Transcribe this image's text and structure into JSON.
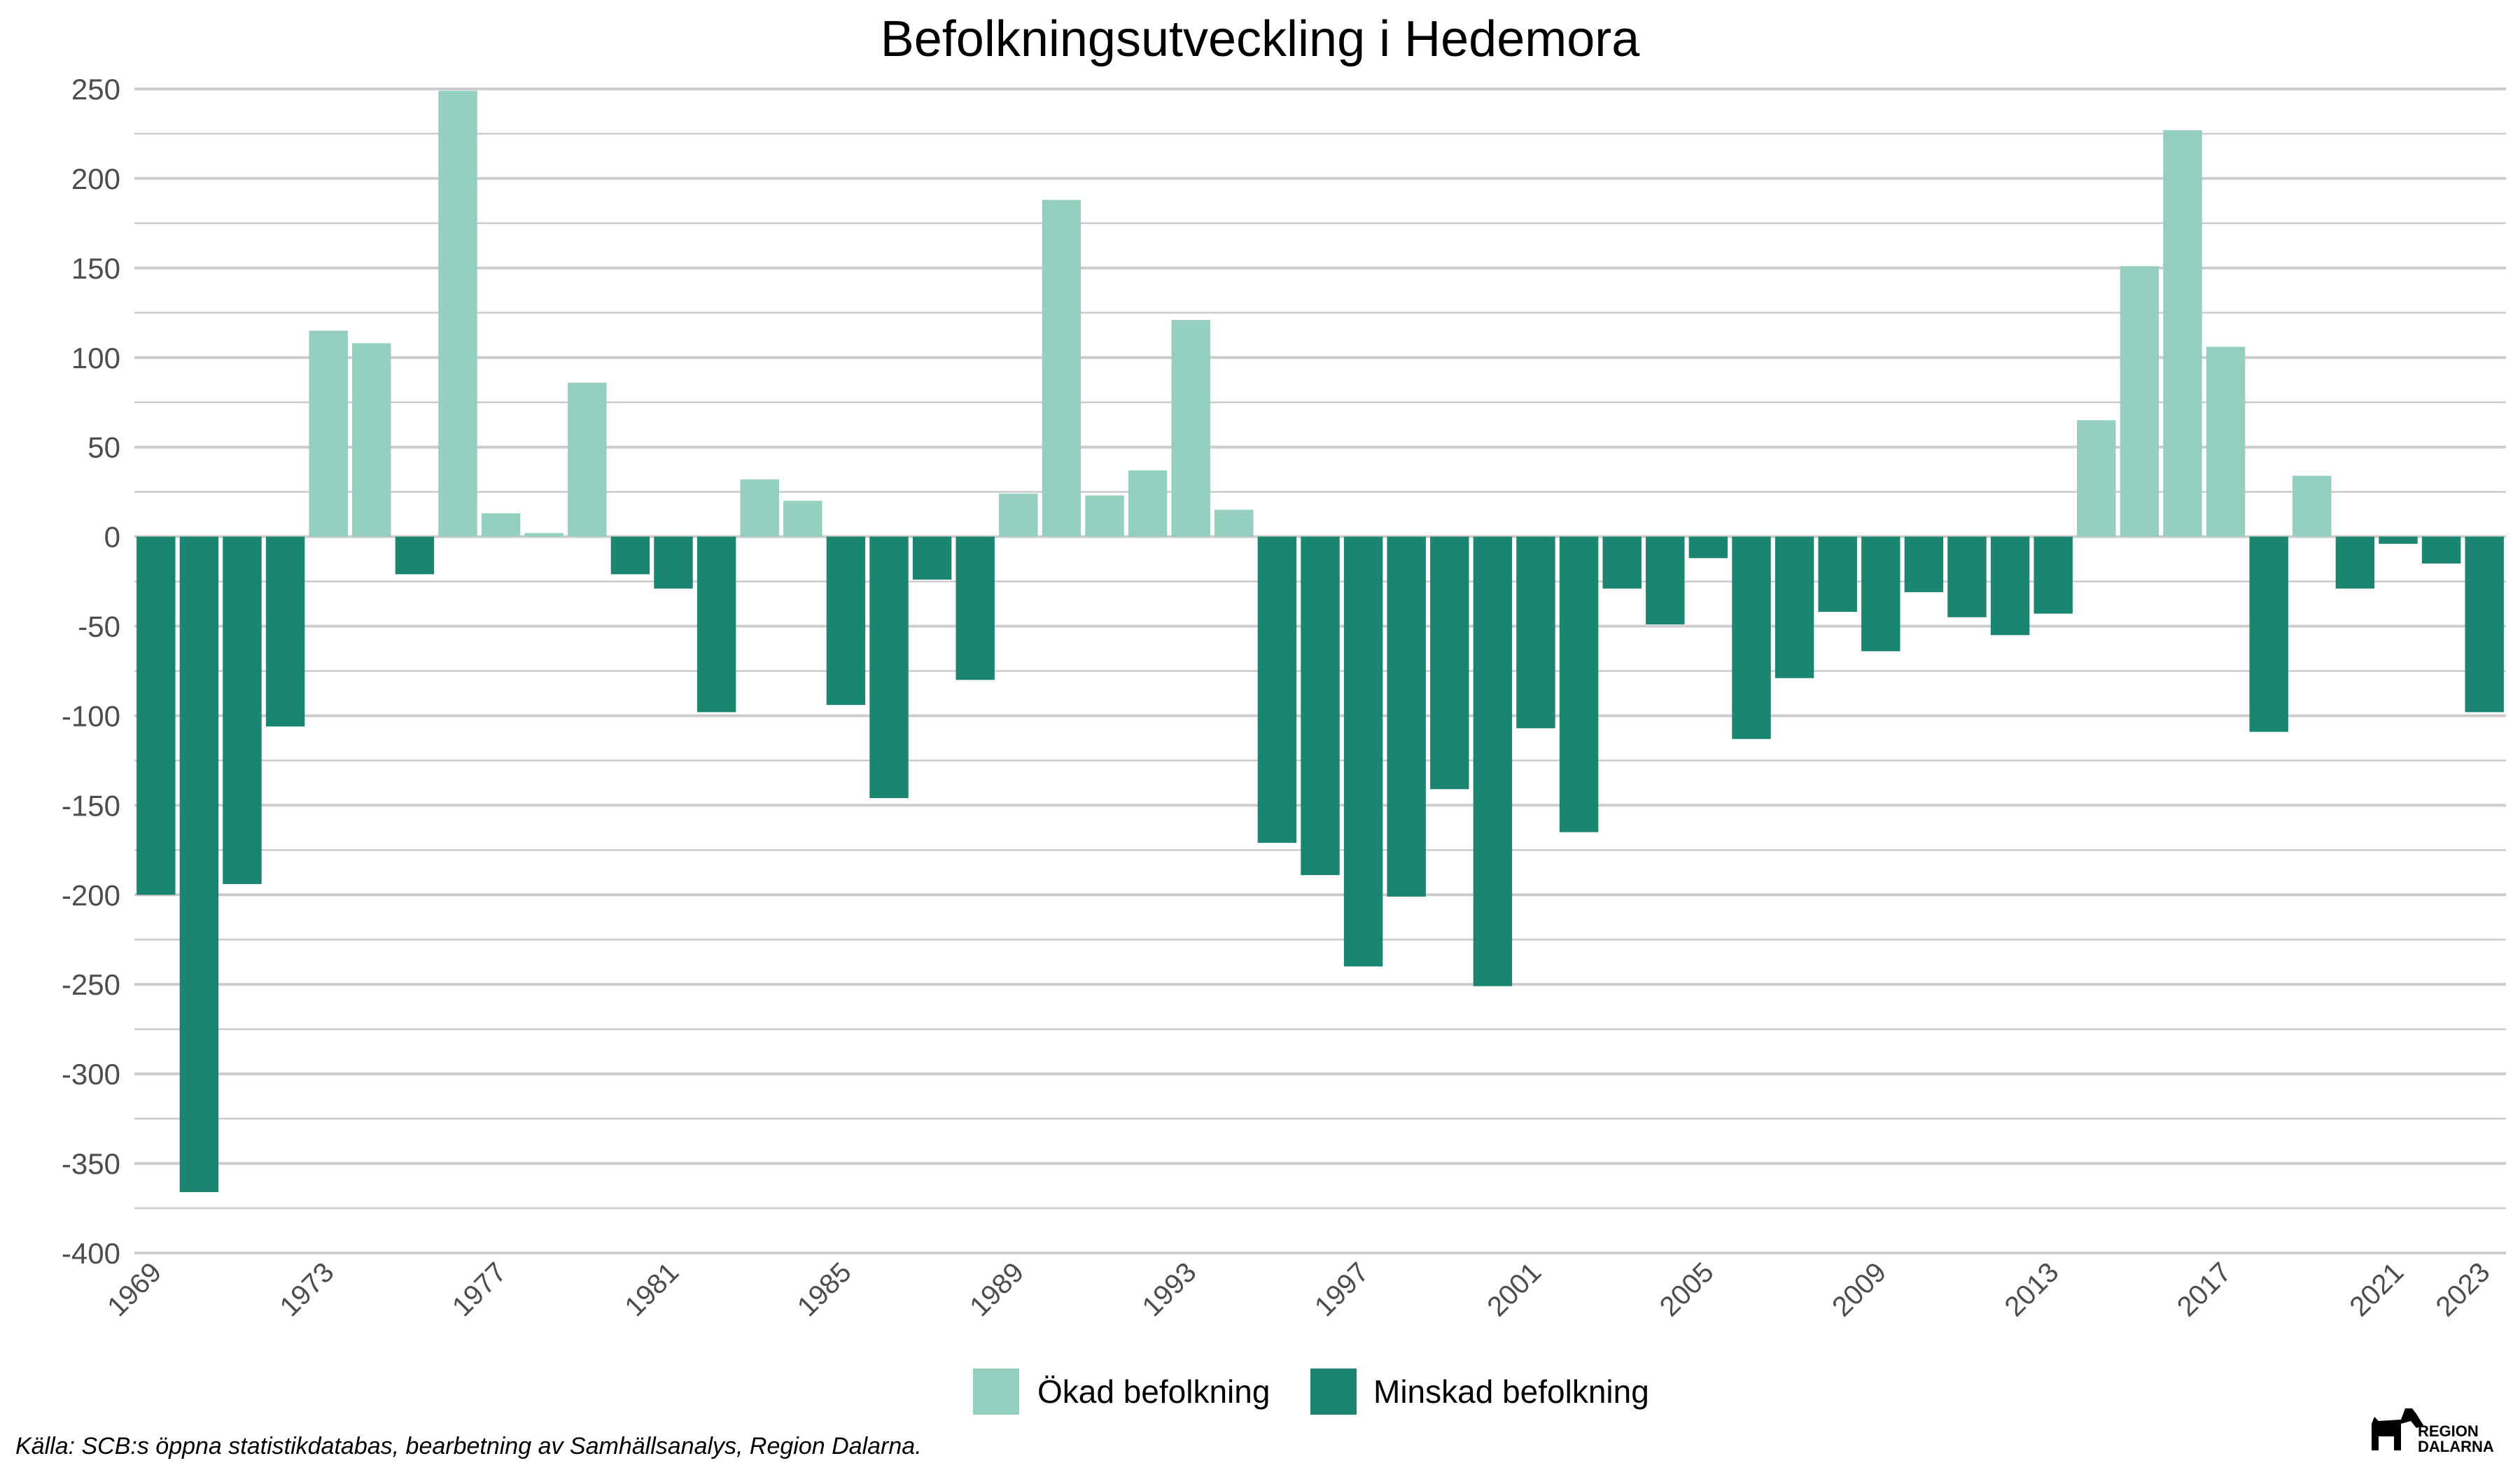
{
  "chart_data": {
    "type": "bar",
    "title": "Befolkningsutveckling i Hedemora",
    "xlabel": "",
    "ylabel": "",
    "ylim": [
      -400,
      250
    ],
    "yticks": [
      250,
      200,
      150,
      100,
      50,
      0,
      -50,
      -100,
      -150,
      -200,
      -250,
      -300,
      -350,
      -400
    ],
    "grid": true,
    "categories": [
      1969,
      1970,
      1971,
      1972,
      1973,
      1974,
      1975,
      1976,
      1977,
      1978,
      1979,
      1980,
      1981,
      1982,
      1983,
      1984,
      1985,
      1986,
      1987,
      1988,
      1989,
      1990,
      1991,
      1992,
      1993,
      1994,
      1995,
      1996,
      1997,
      1998,
      1999,
      2000,
      2001,
      2002,
      2003,
      2004,
      2005,
      2006,
      2007,
      2008,
      2009,
      2010,
      2011,
      2012,
      2013,
      2014,
      2015,
      2016,
      2017,
      2018,
      2019,
      2020,
      2021,
      2022,
      2023
    ],
    "values": [
      -200,
      -366,
      -194,
      -106,
      115,
      108,
      -21,
      249,
      13,
      2,
      86,
      -21,
      -29,
      -98,
      32,
      20,
      -94,
      -146,
      -24,
      -80,
      24,
      188,
      23,
      37,
      121,
      15,
      -171,
      -189,
      -240,
      -201,
      -141,
      -251,
      -107,
      -165,
      -29,
      -49,
      -12,
      -113,
      -79,
      -42,
      -64,
      -31,
      -45,
      -55,
      -43,
      65,
      151,
      227,
      106,
      -109,
      34,
      -29,
      -4,
      -15,
      -98
    ],
    "xtick_labels": [
      "1969",
      "1973",
      "1977",
      "1981",
      "1985",
      "1989",
      "1993",
      "1997",
      "2001",
      "2005",
      "2009",
      "2013",
      "2017",
      "2021",
      "2023"
    ],
    "legend": {
      "position": "bottom",
      "items": [
        {
          "label": "Ökad befolkning",
          "color": "#94cfc0"
        },
        {
          "label": "Minskad befolkning",
          "color": "#1a8571"
        }
      ]
    },
    "colors": {
      "positive": "#94cfc0",
      "negative": "#1a8571",
      "grid": "#cccccc"
    }
  },
  "source_note": "Källa: SCB:s öppna statistikdatabas, bearbetning av Samhällsanalys, Region Dalarna.",
  "logo": {
    "line1": "REGION",
    "line2": "DALARNA"
  }
}
